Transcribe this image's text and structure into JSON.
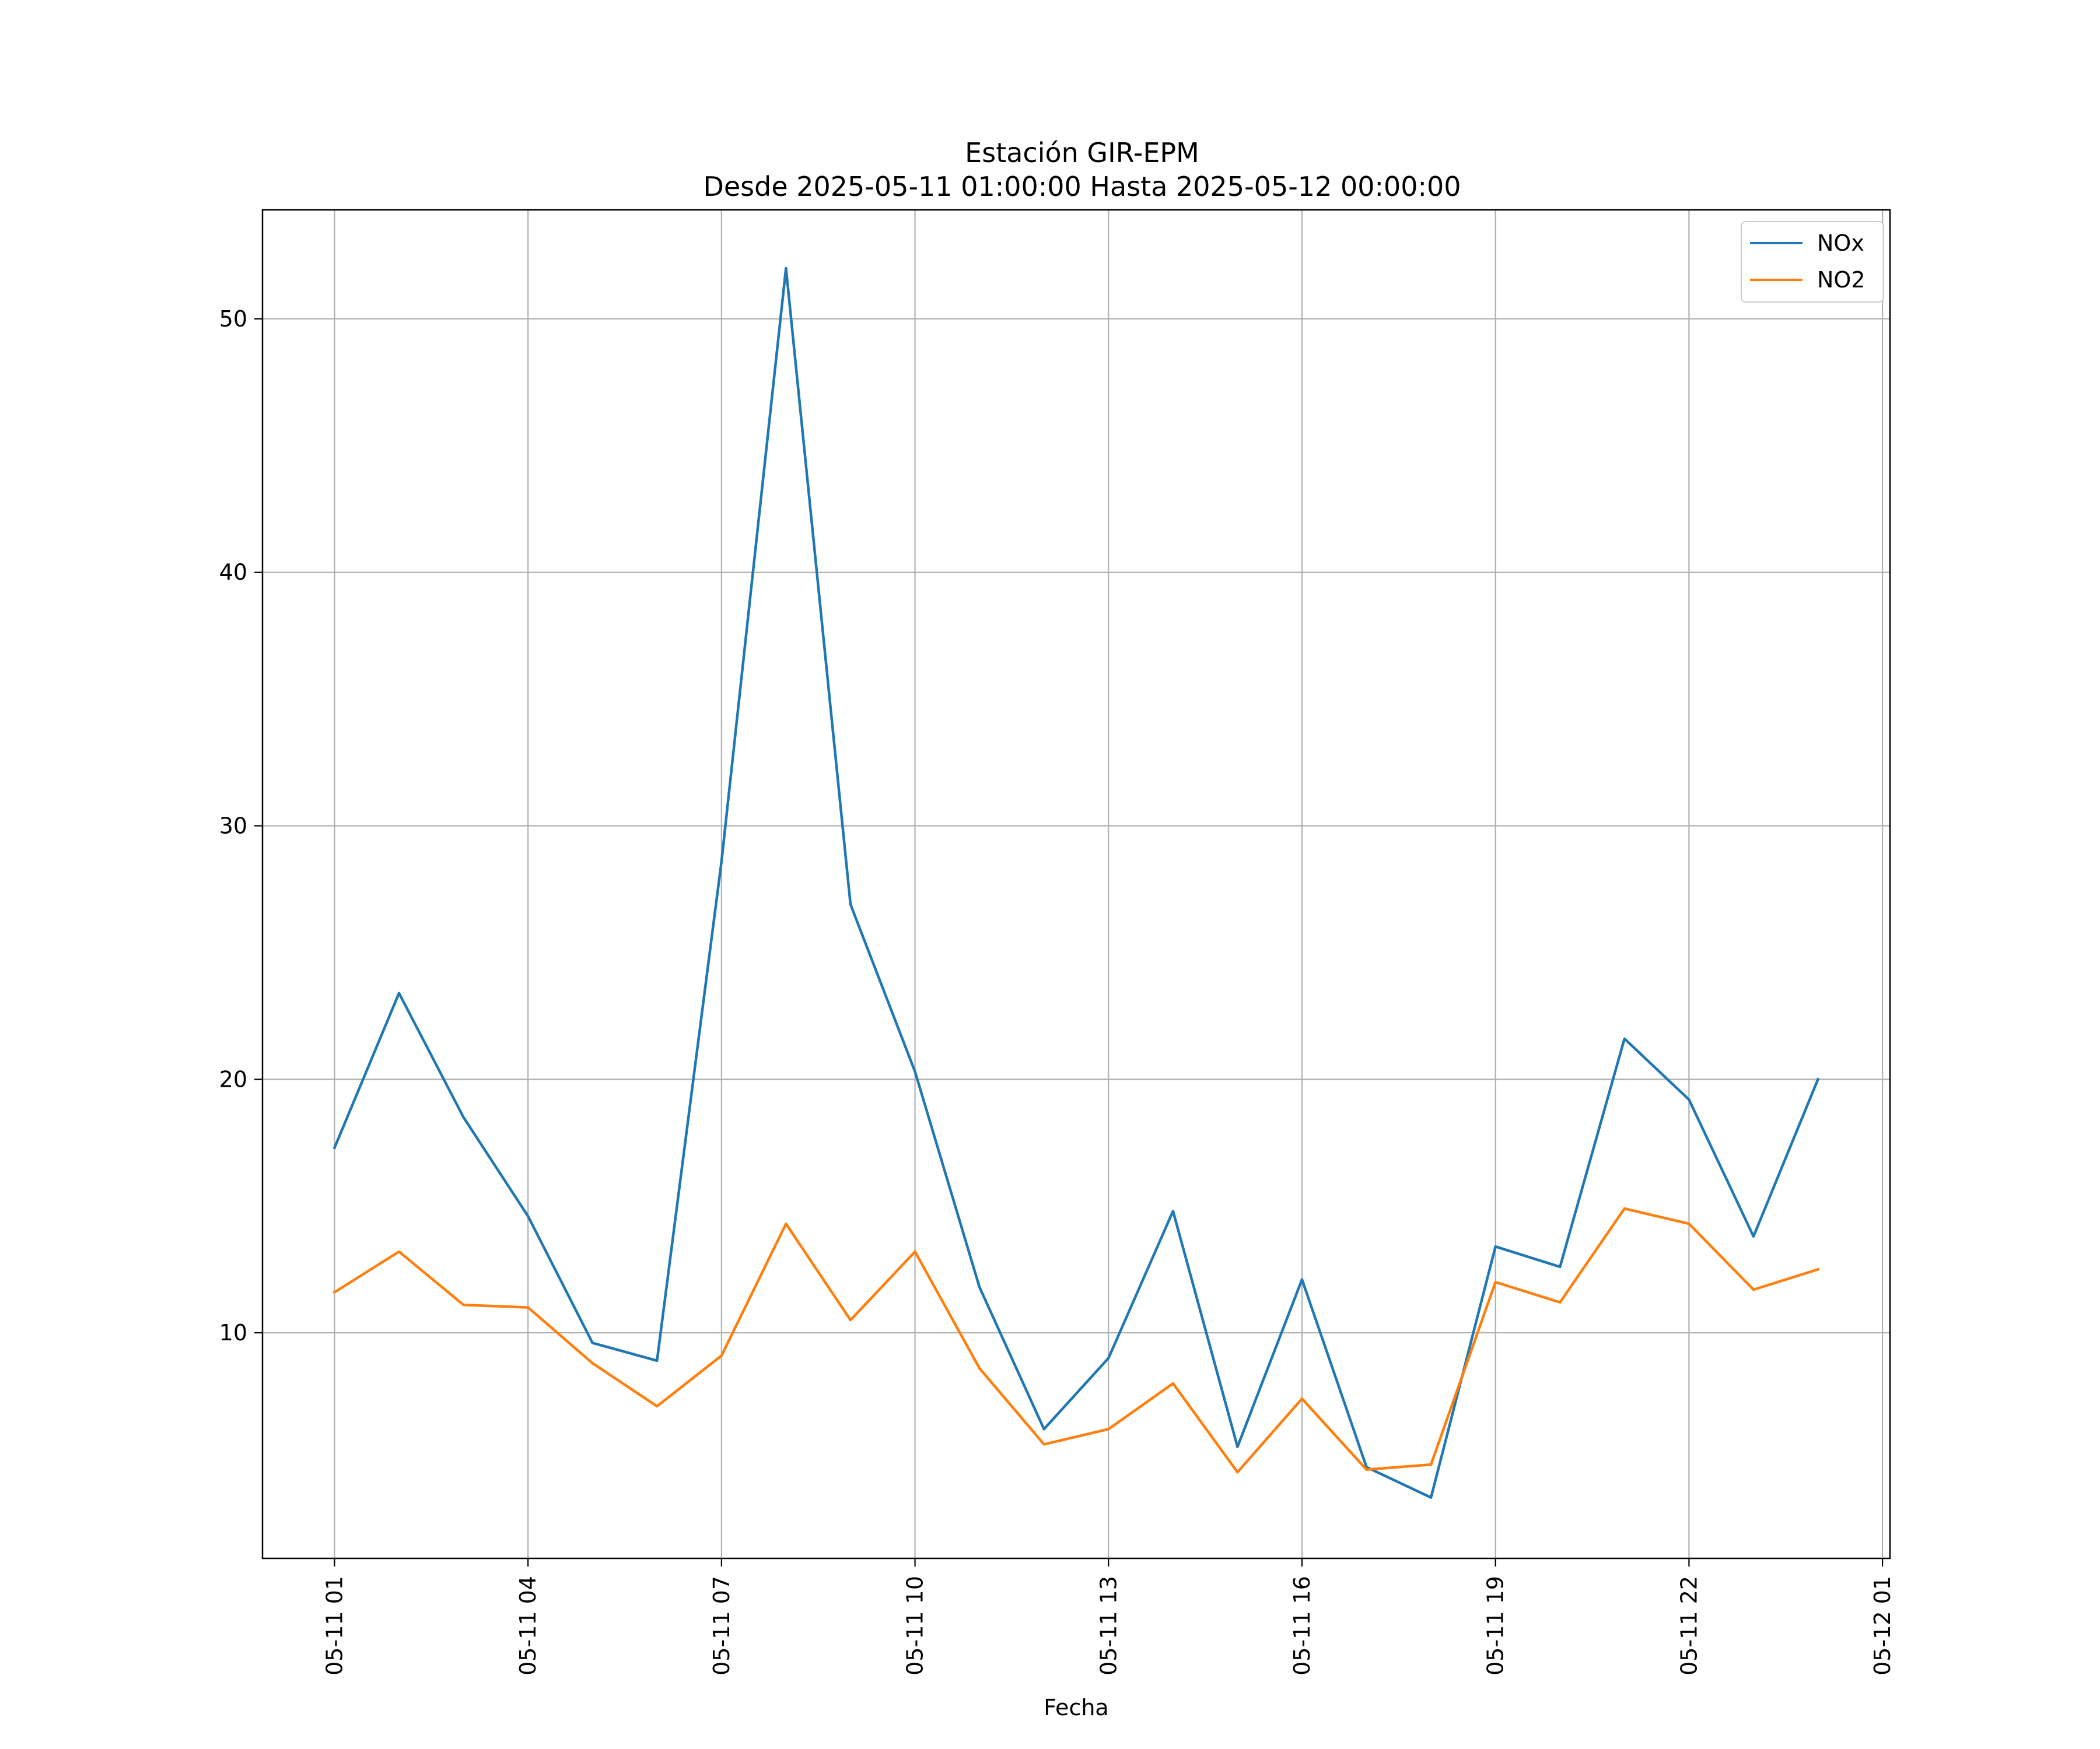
{
  "chart_data": {
    "type": "line",
    "title": "Estación GIR-EPM",
    "subtitle": "Desde 2025-05-11 01:00:00 Hasta 2025-05-12 00:00:00",
    "xlabel": "Fecha",
    "ylabel": "",
    "x": [
      "2025-05-11 01:00",
      "2025-05-11 02:00",
      "2025-05-11 03:00",
      "2025-05-11 04:00",
      "2025-05-11 05:00",
      "2025-05-11 06:00",
      "2025-05-11 07:00",
      "2025-05-11 08:00",
      "2025-05-11 09:00",
      "2025-05-11 10:00",
      "2025-05-11 11:00",
      "2025-05-11 12:00",
      "2025-05-11 13:00",
      "2025-05-11 14:00",
      "2025-05-11 15:00",
      "2025-05-11 16:00",
      "2025-05-11 17:00",
      "2025-05-11 18:00",
      "2025-05-11 19:00",
      "2025-05-11 20:00",
      "2025-05-11 21:00",
      "2025-05-11 22:00",
      "2025-05-11 23:00",
      "2025-05-12 00:00"
    ],
    "x_ticks": [
      "05-11 01",
      "05-11 04",
      "05-11 07",
      "05-11 10",
      "05-11 13",
      "05-11 16",
      "05-11 19",
      "05-11 22",
      "05-12 01"
    ],
    "xlim": [
      "2025-05-10 23:53",
      "2025-05-12 01:07"
    ],
    "y_ticks": [
      10,
      20,
      30,
      40,
      50
    ],
    "ylim": [
      1.1,
      54.3
    ],
    "grid": true,
    "legend": "top-right",
    "series": [
      {
        "name": "NOx",
        "color": "#1f77b4",
        "values": [
          17.3,
          23.4,
          18.5,
          14.6,
          9.6,
          8.9,
          28.6,
          52.0,
          26.9,
          20.3,
          11.8,
          6.2,
          9.0,
          14.8,
          5.5,
          12.1,
          4.7,
          3.5,
          13.4,
          12.6,
          21.6,
          19.2,
          13.8,
          20.0
        ]
      },
      {
        "name": "NO2",
        "color": "#ff7f0e",
        "values": [
          11.6,
          13.2,
          11.1,
          11.0,
          8.8,
          7.1,
          9.1,
          14.3,
          10.5,
          13.2,
          8.6,
          5.6,
          6.2,
          8.0,
          4.5,
          7.4,
          4.6,
          4.8,
          12.0,
          11.2,
          14.9,
          14.3,
          11.7,
          12.5
        ]
      }
    ]
  }
}
